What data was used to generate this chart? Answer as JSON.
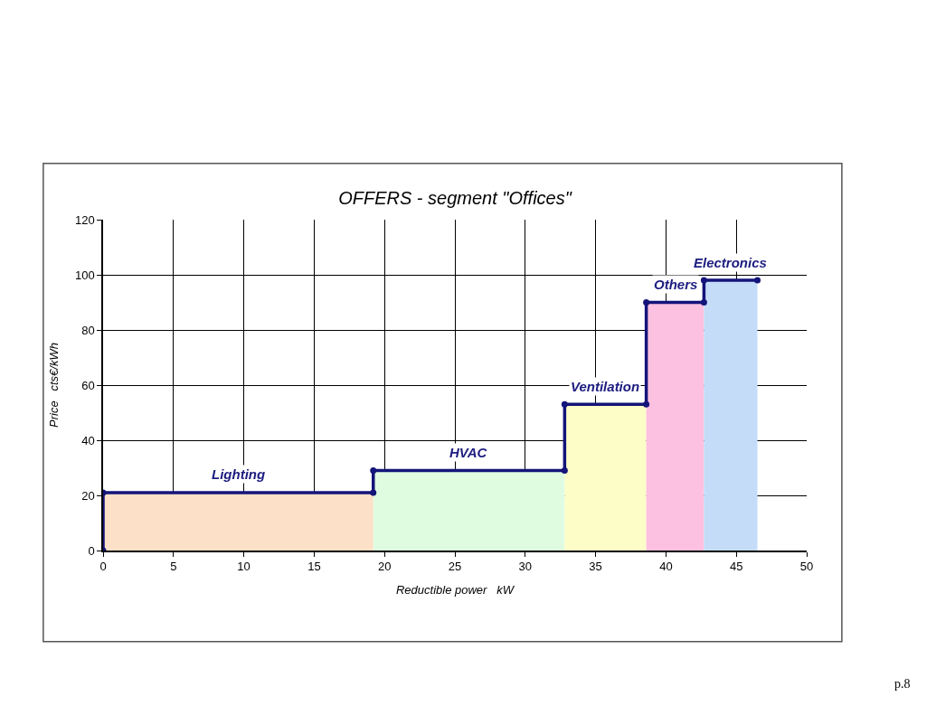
{
  "chart_data": {
    "type": "area",
    "title": "OFFERS - segment \"Offices\"",
    "xlabel": "Reductible power   kW",
    "ylabel": "Price   cts€/kWh",
    "xlim": [
      0,
      50
    ],
    "xticks": [
      0,
      5,
      10,
      15,
      20,
      25,
      30,
      35,
      40,
      45,
      50
    ],
    "ylim": [
      0,
      120
    ],
    "yticks": [
      0,
      20,
      40,
      60,
      80,
      100,
      120
    ],
    "grid": true,
    "series": [
      {
        "name": "Lighting",
        "color": "#fde0c8",
        "x": [
          0,
          19.2
        ],
        "values": [
          21,
          21
        ]
      },
      {
        "name": "HVAC",
        "color": "#e0fce0",
        "x": [
          19.2,
          32.8
        ],
        "values": [
          29,
          29
        ]
      },
      {
        "name": "Ventilation",
        "color": "#fdfdc8",
        "x": [
          32.8,
          38.6
        ],
        "values": [
          53,
          53
        ]
      },
      {
        "name": "Others",
        "color": "#fcc0e0",
        "x": [
          38.6,
          42.7
        ],
        "values": [
          90,
          90
        ]
      },
      {
        "name": "Electronics",
        "color": "#c4dcf8",
        "x": [
          42.7,
          46.5
        ],
        "values": [
          98,
          98
        ]
      },
      {
        "type": "line",
        "color": "#14147a",
        "marker": "circle",
        "line_style": "solid",
        "x": [
          0,
          0,
          19.2,
          19.2,
          32.8,
          32.8,
          38.6,
          38.6,
          42.7,
          42.7,
          46.5
        ],
        "values": [
          0,
          21,
          21,
          29,
          29,
          53,
          53,
          90,
          90,
          98,
          98
        ]
      }
    ],
    "annotations": [
      "p.8"
    ]
  }
}
